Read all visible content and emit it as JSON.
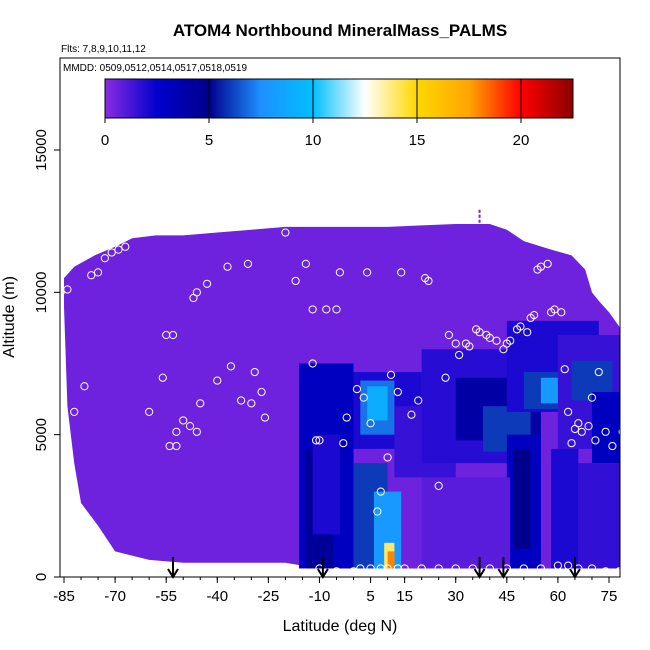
{
  "chart_data": {
    "type": "heatmap",
    "title": "ATOM4 Northbound MineralMass_PALMS",
    "subtitle_flights": "Flts: 7,8,9,10,11,12",
    "subtitle_dates": "MMDD: 0509,0512,0514,0517,0518,0519",
    "xlabel": "Latitude (deg N)",
    "ylabel": "Altitude (m)",
    "xlim": [
      -88,
      82
    ],
    "ylim": [
      0,
      17300
    ],
    "x_ticks": [
      -85,
      -70,
      -55,
      -40,
      -25,
      -10,
      5,
      15,
      30,
      45,
      60,
      75
    ],
    "y_ticks": [
      0,
      5000,
      10000,
      15000
    ],
    "colorbar": {
      "ticks": [
        0,
        5,
        10,
        15,
        20
      ],
      "range": [
        0,
        22.5
      ],
      "colors": [
        "#8a2be2",
        "#0000cd",
        "#00008b",
        "#1e90ff",
        "#00bfff",
        "#ffffff",
        "#ffd700",
        "#ffa500",
        "#ff0000",
        "#8b0000"
      ]
    },
    "background_value": 0.5,
    "envelope_top": [
      [
        -85,
        10500
      ],
      [
        -82,
        10900
      ],
      [
        -76,
        11300
      ],
      [
        -70,
        11600
      ],
      [
        -65,
        11900
      ],
      [
        -58,
        12000
      ],
      [
        -50,
        12000
      ],
      [
        -40,
        12100
      ],
      [
        -30,
        12200
      ],
      [
        -20,
        12300
      ],
      [
        -10,
        12300
      ],
      [
        0,
        12300
      ],
      [
        10,
        12300
      ],
      [
        20,
        12350
      ],
      [
        30,
        12400
      ],
      [
        40,
        12400
      ],
      [
        45,
        12200
      ],
      [
        50,
        11800
      ],
      [
        58,
        11500
      ],
      [
        64,
        11300
      ],
      [
        68,
        10800
      ],
      [
        70,
        10000
      ],
      [
        72,
        9700
      ],
      [
        75,
        9300
      ],
      [
        78,
        8800
      ],
      [
        80,
        7800
      ]
    ],
    "envelope_bottom": [
      [
        -85,
        9500
      ],
      [
        -84,
        6000
      ],
      [
        -82,
        4000
      ],
      [
        -80,
        2600
      ],
      [
        -75,
        1800
      ],
      [
        -70,
        900
      ],
      [
        -60,
        600
      ],
      [
        -50,
        500
      ],
      [
        -40,
        500
      ],
      [
        -30,
        500
      ],
      [
        -20,
        500
      ],
      [
        -10,
        300
      ],
      [
        0,
        300
      ],
      [
        10,
        300
      ],
      [
        20,
        300
      ],
      [
        30,
        300
      ],
      [
        40,
        300
      ],
      [
        50,
        300
      ],
      [
        60,
        300
      ],
      [
        70,
        300
      ],
      [
        80,
        300
      ]
    ],
    "patches": [
      {
        "x": [
          -16,
          0
        ],
        "y": [
          300,
          7500
        ],
        "v": 3
      },
      {
        "x": [
          -14,
          -6
        ],
        "y": [
          300,
          4500
        ],
        "v": 4.5
      },
      {
        "x": [
          -12,
          -4
        ],
        "y": [
          1500,
          5000
        ],
        "v": 2
      },
      {
        "x": [
          0,
          10
        ],
        "y": [
          300,
          4000
        ],
        "v": 6
      },
      {
        "x": [
          6,
          14
        ],
        "y": [
          300,
          3000
        ],
        "v": 8
      },
      {
        "x": [
          9,
          12
        ],
        "y": [
          300,
          1200
        ],
        "v": 14
      },
      {
        "x": [
          10,
          12
        ],
        "y": [
          300,
          900
        ],
        "v": 18
      },
      {
        "x": [
          0,
          20
        ],
        "y": [
          4500,
          7200
        ],
        "v": 2
      },
      {
        "x": [
          2,
          12
        ],
        "y": [
          5000,
          6900
        ],
        "v": 7
      },
      {
        "x": [
          4,
          10
        ],
        "y": [
          5500,
          6700
        ],
        "v": 9
      },
      {
        "x": [
          12,
          30
        ],
        "y": [
          3500,
          6000
        ],
        "v": 1.5
      },
      {
        "x": [
          20,
          50
        ],
        "y": [
          4000,
          8000
        ],
        "v": 1.8
      },
      {
        "x": [
          30,
          55
        ],
        "y": [
          4800,
          7000
        ],
        "v": 4
      },
      {
        "x": [
          38,
          52
        ],
        "y": [
          4400,
          6000
        ],
        "v": 6
      },
      {
        "x": [
          45,
          72
        ],
        "y": [
          5800,
          9000
        ],
        "v": 2
      },
      {
        "x": [
          50,
          62
        ],
        "y": [
          5900,
          7200
        ],
        "v": 6
      },
      {
        "x": [
          55,
          66
        ],
        "y": [
          6100,
          7000
        ],
        "v": 8
      },
      {
        "x": [
          60,
          80
        ],
        "y": [
          4500,
          8500
        ],
        "v": 1.5
      },
      {
        "x": [
          64,
          76
        ],
        "y": [
          6200,
          7600
        ],
        "v": 6
      },
      {
        "x": [
          70,
          80
        ],
        "y": [
          4000,
          6500
        ],
        "v": 3
      },
      {
        "x": [
          45,
          55
        ],
        "y": [
          300,
          5000
        ],
        "v": 3
      },
      {
        "x": [
          47,
          52
        ],
        "y": [
          1000,
          4500
        ],
        "v": 5
      },
      {
        "x": [
          58,
          66
        ],
        "y": [
          300,
          4500
        ],
        "v": 2
      },
      {
        "x": [
          66,
          80
        ],
        "y": [
          300,
          4000
        ],
        "v": 1.6
      },
      {
        "x": [
          20,
          46
        ],
        "y": [
          300,
          3500
        ],
        "v": 0.9
      }
    ],
    "flight_points": [
      [
        -87,
        7000
      ],
      [
        -86,
        10000
      ],
      [
        -84,
        10100
      ],
      [
        -82,
        5800
      ],
      [
        -80,
        1400
      ],
      [
        -79,
        6700
      ],
      [
        -77,
        10600
      ],
      [
        -75,
        10700
      ],
      [
        -73,
        11200
      ],
      [
        -71,
        11400
      ],
      [
        -69,
        11500
      ],
      [
        -67,
        11600
      ],
      [
        -60,
        5800
      ],
      [
        -56,
        7000
      ],
      [
        -55,
        8500
      ],
      [
        -53,
        8500
      ],
      [
        -54,
        4600
      ],
      [
        -52,
        4600
      ],
      [
        -52,
        5100
      ],
      [
        -50,
        5500
      ],
      [
        -48,
        5300
      ],
      [
        -46,
        5100
      ],
      [
        -47,
        9800
      ],
      [
        -46,
        10000
      ],
      [
        -45,
        6100
      ],
      [
        -43,
        10300
      ],
      [
        -40,
        6900
      ],
      [
        -37,
        10900
      ],
      [
        -36,
        7400
      ],
      [
        -33,
        6200
      ],
      [
        -31,
        11000
      ],
      [
        -30,
        6100
      ],
      [
        -29,
        7200
      ],
      [
        -27,
        6500
      ],
      [
        -26,
        5600
      ],
      [
        -20,
        12100
      ],
      [
        -17,
        10400
      ],
      [
        -14,
        11000
      ],
      [
        -12,
        7500
      ],
      [
        -12,
        9400
      ],
      [
        -11,
        4800
      ],
      [
        -10,
        4800
      ],
      [
        -8,
        9400
      ],
      [
        -5,
        9400
      ],
      [
        -4,
        10700
      ],
      [
        -3,
        4700
      ],
      [
        -2,
        5600
      ],
      [
        1,
        6600
      ],
      [
        3,
        6300
      ],
      [
        4,
        10700
      ],
      [
        5,
        5400
      ],
      [
        7,
        2300
      ],
      [
        8,
        3000
      ],
      [
        10,
        4200
      ],
      [
        11,
        7100
      ],
      [
        13,
        6500
      ],
      [
        14,
        10700
      ],
      [
        17,
        5700
      ],
      [
        19,
        6200
      ],
      [
        21,
        10500
      ],
      [
        22,
        10400
      ],
      [
        25,
        3200
      ],
      [
        27,
        7000
      ],
      [
        28,
        8500
      ],
      [
        30,
        8200
      ],
      [
        31,
        7800
      ],
      [
        33,
        8200
      ],
      [
        34,
        8100
      ],
      [
        36,
        8700
      ],
      [
        37,
        8600
      ],
      [
        39,
        8500
      ],
      [
        40,
        8400
      ],
      [
        42,
        8300
      ],
      [
        44,
        8000
      ],
      [
        45,
        8200
      ],
      [
        46,
        8300
      ],
      [
        48,
        8700
      ],
      [
        49,
        8800
      ],
      [
        51,
        8600
      ],
      [
        52,
        9100
      ],
      [
        53,
        9200
      ],
      [
        54,
        10800
      ],
      [
        55,
        10900
      ],
      [
        57,
        11000
      ],
      [
        58,
        9300
      ],
      [
        59,
        9400
      ],
      [
        61,
        9300
      ],
      [
        62,
        7300
      ],
      [
        63,
        5800
      ],
      [
        64,
        4700
      ],
      [
        65,
        5200
      ],
      [
        66,
        5400
      ],
      [
        67,
        5100
      ],
      [
        69,
        5300
      ],
      [
        70,
        6300
      ],
      [
        71,
        4800
      ],
      [
        72,
        7200
      ],
      [
        74,
        5100
      ],
      [
        76,
        4600
      ],
      [
        77,
        9300
      ],
      [
        78,
        9400
      ],
      [
        79,
        5100
      ],
      [
        80,
        5100
      ],
      [
        -57,
        300
      ],
      [
        -55,
        300
      ],
      [
        -52,
        200
      ],
      [
        -49,
        200
      ],
      [
        -45,
        200
      ],
      [
        -40,
        200
      ],
      [
        -35,
        200
      ],
      [
        -30,
        300
      ],
      [
        -25,
        300
      ],
      [
        -20,
        300
      ],
      [
        -10,
        300
      ],
      [
        -5,
        200
      ],
      [
        0,
        200
      ],
      [
        2,
        300
      ],
      [
        5,
        300
      ],
      [
        8,
        300
      ],
      [
        10,
        300
      ],
      [
        13,
        300
      ],
      [
        15,
        300
      ],
      [
        20,
        300
      ],
      [
        25,
        300
      ],
      [
        30,
        300
      ],
      [
        35,
        300
      ],
      [
        40,
        300
      ],
      [
        45,
        300
      ],
      [
        50,
        300
      ],
      [
        55,
        300
      ],
      [
        60,
        400
      ],
      [
        63,
        400
      ],
      [
        66,
        300
      ],
      [
        70,
        300
      ],
      [
        74,
        200
      ],
      [
        78,
        200
      ],
      [
        81,
        200
      ]
    ],
    "arrows_lat": [
      -53,
      -9,
      37,
      44,
      65
    ],
    "top_mark": {
      "lat": 37,
      "alt_range": [
        12400,
        12900
      ]
    }
  }
}
